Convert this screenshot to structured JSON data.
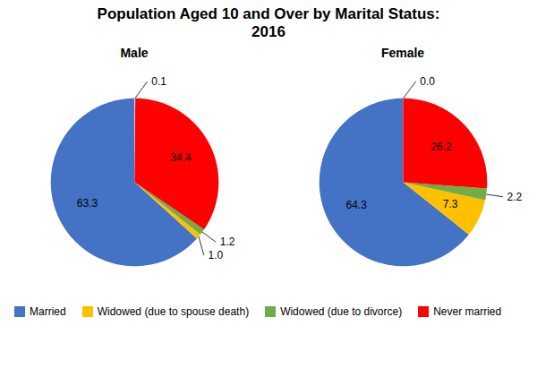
{
  "title": "Population Aged 10 and Over by Marital Status:\n2016",
  "chart_data": [
    {
      "type": "pie",
      "title": "Male",
      "categories": [
        "Married",
        "Widowed (due to spouse death)",
        "Widowed (due to divorce)",
        "Never married",
        null
      ],
      "values": [
        63.3,
        1.0,
        1.2,
        34.4,
        0.1
      ],
      "value_labels": [
        "63.3",
        "1.0",
        "1.2",
        "34.4",
        "0.1"
      ],
      "colors": [
        "#4472C4",
        "#FFC000",
        "#70AD47",
        "#FF0000",
        "#FFFFFF"
      ],
      "data_labels": true
    },
    {
      "type": "pie",
      "title": "Female",
      "categories": [
        "Married",
        "Widowed (due to spouse death)",
        "Widowed (due to divorce)",
        "Never married",
        null
      ],
      "values": [
        64.3,
        7.3,
        2.2,
        26.2,
        0.0
      ],
      "value_labels": [
        "64.3",
        "7.3",
        "2.2",
        "26.2",
        "0.0"
      ],
      "colors": [
        "#4472C4",
        "#FFC000",
        "#70AD47",
        "#FF0000",
        "#FFFFFF"
      ],
      "data_labels": true
    }
  ]
}
